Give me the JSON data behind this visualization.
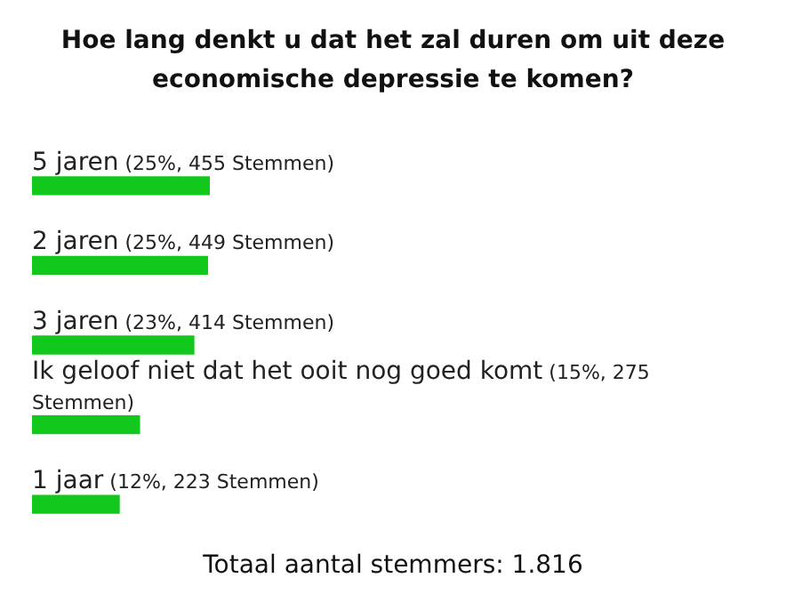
{
  "chart_data": {
    "type": "bar",
    "orientation": "horizontal",
    "title": "Hoe lang denkt u dat het zal duren om uit deze economische depressie te komen?",
    "categories": [
      "5 jaren",
      "2 jaren",
      "3 jaren",
      "Ik geloof niet dat het ooit nog goed komt",
      "1 jaar"
    ],
    "values": [
      455,
      449,
      414,
      275,
      223
    ],
    "value_labels": [
      "(25%, 455 Stemmen)",
      "(25%, 449 Stemmen)",
      "(23%, 414 Stemmen)",
      "(15%, 275 Stemmen)",
      "(12%, 223 Stemmen)"
    ],
    "color": "#13c81c",
    "tick_labels": false,
    "annotations": [
      "Totaal aantal stemmers: 1.816"
    ]
  }
}
